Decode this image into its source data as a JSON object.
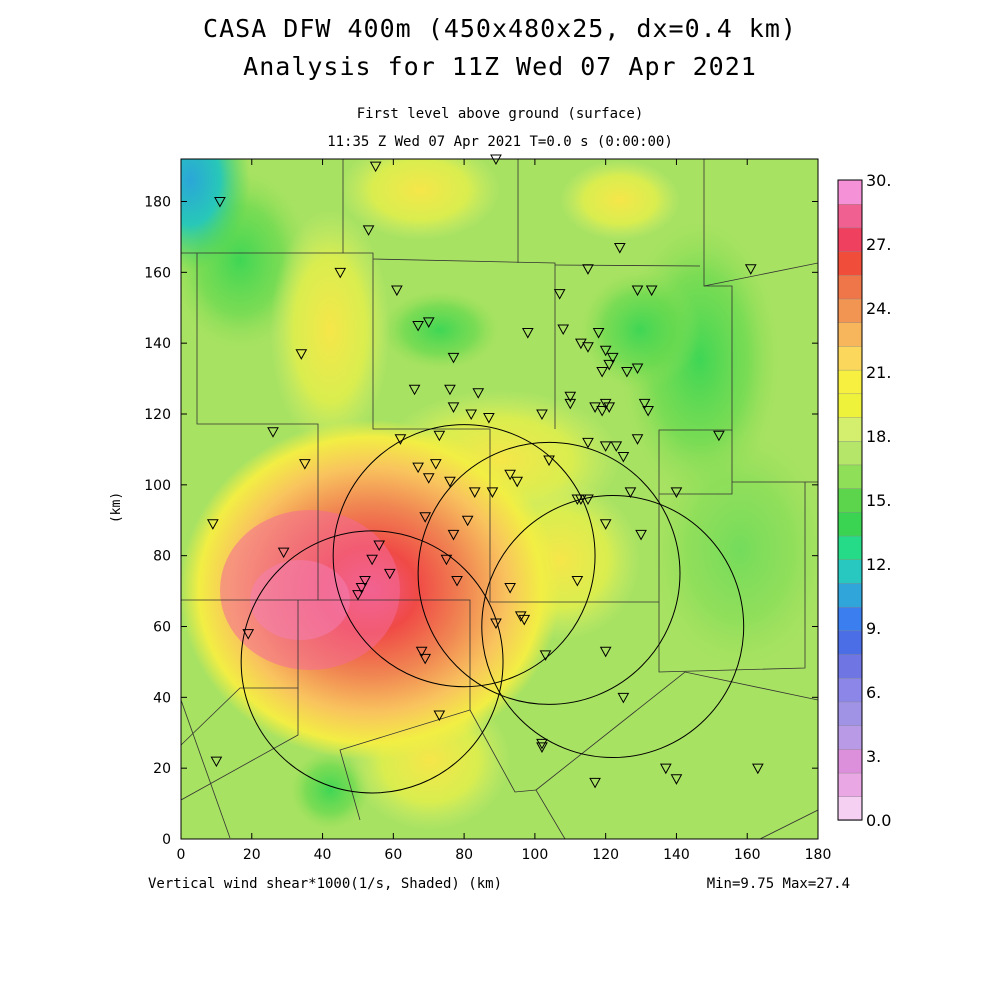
{
  "title_line1": "CASA DFW 400m (450x480x25, dx=0.4 km)",
  "title_line2": "Analysis for 11Z Wed 07 Apr 2021",
  "subtitle_line1": "First level above ground (surface)",
  "subtitle_line2": "11:35 Z Wed 07 Apr 2021    T=0.0 s (0:00:00)",
  "x_label": "Vertical wind shear*1000(1/s, Shaded)  (km)",
  "y_label": "(km)",
  "stats": "Min=9.75 Max=27.4",
  "chart_data": {
    "type": "heatmap",
    "x_ticks": [
      "0",
      "20",
      "40",
      "60",
      "80",
      "100",
      "120",
      "140",
      "160",
      "180"
    ],
    "y_ticks": [
      "0",
      "20",
      "40",
      "60",
      "80",
      "100",
      "120",
      "140",
      "160",
      "180"
    ],
    "xlim": [
      0,
      180
    ],
    "ylim": [
      0,
      192
    ],
    "colorbar_labels": [
      "30.",
      "27.",
      "24.",
      "21.",
      "18.",
      "15.",
      "12.",
      "9.",
      "6.",
      "3.",
      "0.0"
    ],
    "colorbar_colors": [
      "#f5d0f3",
      "#e9a8e4",
      "#dc8fdb",
      "#b89ae6",
      "#a093e6",
      "#8c86e8",
      "#6f75e3",
      "#4b6de6",
      "#3a7ef0",
      "#2fa5d9",
      "#28c8c0",
      "#26db88",
      "#3ad452",
      "#5cd44c",
      "#8fdf58",
      "#b5e66a",
      "#d4ee6e",
      "#eef23a",
      "#f8f040",
      "#fbd85c",
      "#f8b65c",
      "#f39552",
      "#ee7648",
      "#f04e3a",
      "#f04060",
      "#f06090",
      "#f591d6"
    ],
    "min": 9.75,
    "max": 27.4,
    "radar_circles": [
      {
        "cx": 54,
        "cy": 50,
        "r": 37
      },
      {
        "cx": 80,
        "cy": 80,
        "r": 37
      },
      {
        "cx": 104,
        "cy": 75,
        "r": 37
      },
      {
        "cx": 122,
        "cy": 60,
        "r": 37
      }
    ],
    "stations": [
      [
        11,
        180
      ],
      [
        55,
        190
      ],
      [
        89,
        192
      ],
      [
        53,
        172
      ],
      [
        124,
        167
      ],
      [
        45,
        160
      ],
      [
        61,
        155
      ],
      [
        115,
        161
      ],
      [
        161,
        161
      ],
      [
        107,
        154
      ],
      [
        129,
        155
      ],
      [
        133,
        155
      ],
      [
        67,
        145
      ],
      [
        70,
        146
      ],
      [
        98,
        143
      ],
      [
        108,
        144
      ],
      [
        118,
        143
      ],
      [
        34,
        137
      ],
      [
        77,
        136
      ],
      [
        113,
        140
      ],
      [
        115,
        139
      ],
      [
        120,
        138
      ],
      [
        122,
        136
      ],
      [
        121,
        134
      ],
      [
        119,
        132
      ],
      [
        126,
        132
      ],
      [
        129,
        133
      ],
      [
        66,
        127
      ],
      [
        76,
        127
      ],
      [
        84,
        126
      ],
      [
        110,
        125
      ],
      [
        77,
        122
      ],
      [
        82,
        120
      ],
      [
        87,
        119
      ],
      [
        102,
        120
      ],
      [
        110,
        123
      ],
      [
        117,
        122
      ],
      [
        119,
        121
      ],
      [
        120,
        123
      ],
      [
        121,
        122
      ],
      [
        131,
        123
      ],
      [
        132,
        121
      ],
      [
        26,
        115
      ],
      [
        62,
        113
      ],
      [
        73,
        114
      ],
      [
        115,
        112
      ],
      [
        120,
        111
      ],
      [
        123,
        111
      ],
      [
        125,
        108
      ],
      [
        129,
        113
      ],
      [
        35,
        106
      ],
      [
        67,
        105
      ],
      [
        70,
        102
      ],
      [
        72,
        106
      ],
      [
        76,
        101
      ],
      [
        104,
        107
      ],
      [
        113,
        96
      ],
      [
        115,
        96
      ],
      [
        93,
        103
      ],
      [
        95,
        101
      ],
      [
        83,
        98
      ],
      [
        88,
        98
      ],
      [
        127,
        98
      ],
      [
        140,
        98
      ],
      [
        152,
        114
      ],
      [
        9,
        89
      ],
      [
        29,
        81
      ],
      [
        69,
        91
      ],
      [
        81,
        90
      ],
      [
        77,
        86
      ],
      [
        112,
        96
      ],
      [
        120,
        89
      ],
      [
        130,
        86
      ],
      [
        54,
        79
      ],
      [
        56,
        83
      ],
      [
        59,
        75
      ],
      [
        75,
        79
      ],
      [
        78,
        73
      ],
      [
        93,
        71
      ],
      [
        112,
        73
      ],
      [
        50,
        69
      ],
      [
        51,
        71
      ],
      [
        52,
        73
      ],
      [
        89,
        61
      ],
      [
        96,
        63
      ],
      [
        97,
        62
      ],
      [
        19,
        58
      ],
      [
        68,
        53
      ],
      [
        69,
        51
      ],
      [
        103,
        52
      ],
      [
        120,
        53
      ],
      [
        73,
        35
      ],
      [
        125,
        40
      ],
      [
        102,
        26
      ],
      [
        102,
        27
      ],
      [
        137,
        20
      ],
      [
        140,
        17
      ],
      [
        163,
        20
      ],
      [
        10,
        22
      ],
      [
        117,
        16
      ]
    ]
  }
}
